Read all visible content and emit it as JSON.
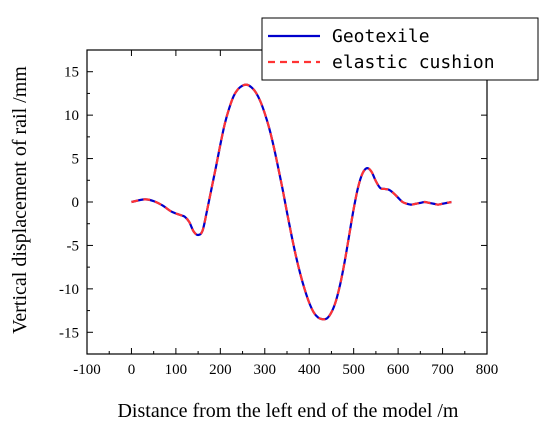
{
  "chart_data": {
    "type": "line",
    "title": "",
    "xlabel": "Distance from the left end of the model /m",
    "ylabel": "Vertical displacement of rail /mm",
    "xlim": [
      -100,
      800
    ],
    "ylim": [
      -17.5,
      17.5
    ],
    "xticks": [
      -100,
      0,
      100,
      200,
      300,
      400,
      500,
      600,
      700,
      800
    ],
    "yticks": [
      -15,
      -10,
      -5,
      0,
      5,
      10,
      15
    ],
    "grid": false,
    "legend_position": "top-right",
    "series": [
      {
        "name": "Geotexile",
        "color": "#0000cc",
        "dash": "solid",
        "x": [
          0,
          30,
          50,
          70,
          90,
          110,
          120,
          130,
          140,
          150,
          160,
          170,
          180,
          190,
          200,
          210,
          220,
          230,
          240,
          250,
          260,
          270,
          280,
          290,
          300,
          310,
          320,
          330,
          340,
          350,
          360,
          370,
          380,
          390,
          400,
          410,
          420,
          430,
          440,
          450,
          460,
          470,
          480,
          490,
          500,
          510,
          520,
          530,
          540,
          550,
          560,
          570,
          580,
          590,
          600,
          610,
          620,
          630,
          640,
          650,
          660,
          670,
          680,
          690,
          700,
          710,
          720
        ],
        "y": [
          0,
          0.3,
          0.1,
          -0.4,
          -1.1,
          -1.5,
          -1.7,
          -2.3,
          -3.4,
          -3.8,
          -3.3,
          -1.0,
          1.5,
          4.0,
          6.6,
          9.0,
          10.8,
          12.2,
          13.0,
          13.4,
          13.5,
          13.2,
          12.6,
          11.6,
          10.2,
          8.5,
          6.4,
          4.0,
          1.5,
          -1.2,
          -3.8,
          -6.2,
          -8.3,
          -10.1,
          -11.6,
          -12.7,
          -13.3,
          -13.5,
          -13.4,
          -12.7,
          -11.4,
          -9.4,
          -6.8,
          -3.8,
          -0.8,
          1.7,
          3.3,
          3.9,
          3.5,
          2.4,
          1.6,
          1.5,
          1.4,
          1.0,
          0.5,
          0.0,
          -0.2,
          -0.3,
          -0.2,
          -0.1,
          0.0,
          -0.1,
          -0.2,
          -0.3,
          -0.2,
          -0.1,
          0.0
        ]
      },
      {
        "name": "elastic cushion",
        "color": "#ff3333",
        "dash": "dashed",
        "x": [
          0,
          30,
          50,
          70,
          90,
          110,
          120,
          130,
          140,
          150,
          160,
          170,
          180,
          190,
          200,
          210,
          220,
          230,
          240,
          250,
          260,
          270,
          280,
          290,
          300,
          310,
          320,
          330,
          340,
          350,
          360,
          370,
          380,
          390,
          400,
          410,
          420,
          430,
          440,
          450,
          460,
          470,
          480,
          490,
          500,
          510,
          520,
          530,
          540,
          550,
          560,
          570,
          580,
          590,
          600,
          610,
          620,
          630,
          640,
          650,
          660,
          670,
          680,
          690,
          700,
          710,
          720
        ],
        "y": [
          0,
          0.3,
          0.1,
          -0.4,
          -1.1,
          -1.5,
          -1.7,
          -2.3,
          -3.4,
          -3.8,
          -3.3,
          -1.0,
          1.5,
          4.0,
          6.6,
          9.0,
          10.8,
          12.2,
          13.0,
          13.4,
          13.5,
          13.2,
          12.6,
          11.6,
          10.2,
          8.5,
          6.4,
          4.0,
          1.5,
          -1.2,
          -3.8,
          -6.2,
          -8.3,
          -10.1,
          -11.6,
          -12.7,
          -13.3,
          -13.5,
          -13.4,
          -12.7,
          -11.4,
          -9.4,
          -6.8,
          -3.8,
          -0.8,
          1.7,
          3.3,
          3.9,
          3.5,
          2.4,
          1.6,
          1.5,
          1.4,
          1.0,
          0.5,
          0.0,
          -0.2,
          -0.3,
          -0.2,
          -0.1,
          0.0,
          -0.1,
          -0.2,
          -0.3,
          -0.2,
          -0.1,
          0.0
        ]
      }
    ]
  }
}
